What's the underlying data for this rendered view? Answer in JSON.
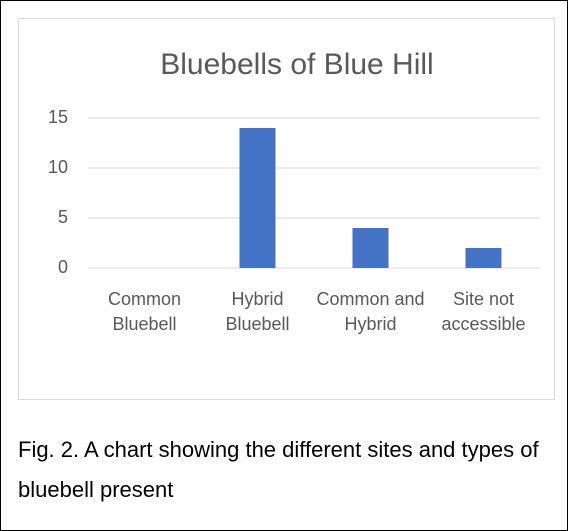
{
  "chart_data": {
    "type": "bar",
    "title": "Bluebells of Blue Hill",
    "categories": [
      "Common Bluebell",
      "Hybrid Bluebell",
      "Common and Hybrid",
      "Site not accessible"
    ],
    "values": [
      0,
      14,
      4,
      2
    ],
    "color": "#4472c4",
    "ylim": [
      0,
      15
    ],
    "yticks": [
      0,
      5,
      10,
      15
    ],
    "grid": true
  },
  "caption": "Fig. 2. A chart showing the different sites and types of bluebell present"
}
